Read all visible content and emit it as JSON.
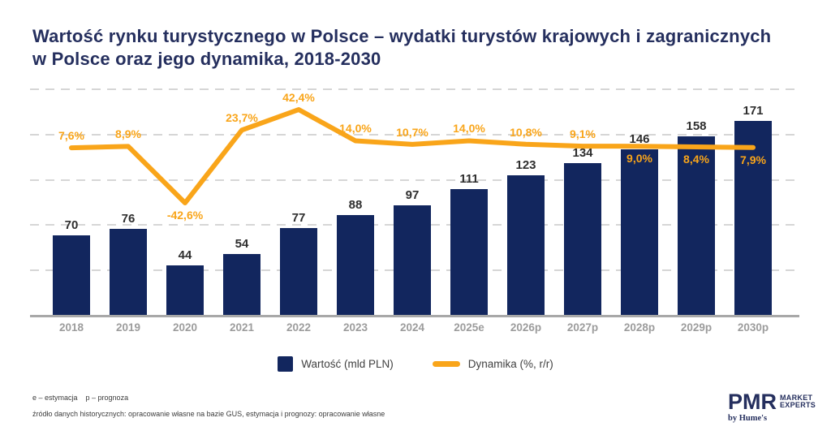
{
  "title": {
    "line1": "Wartość rynku turystycznego w Polsce – wydatki turystów krajowych i zagranicznych",
    "line2": "w Polsce oraz jego dynamika, 2018-2030"
  },
  "chart_data": {
    "type": "bar+line combo",
    "title": "Wartość rynku turystycznego w Polsce – wydatki turystów krajowych i zagranicznych w Polsce oraz jego dynamika, 2018-2030",
    "categories": [
      "2018",
      "2019",
      "2020",
      "2021",
      "2022",
      "2023",
      "2024",
      "2025e",
      "2026p",
      "2027p",
      "2028p",
      "2029p",
      "2030p"
    ],
    "series": [
      {
        "name": "Wartość (mld PLN)",
        "type": "bar",
        "color": "#12265e",
        "values": [
          70,
          76,
          44,
          54,
          77,
          88,
          97,
          111,
          123,
          134,
          146,
          158,
          171
        ]
      },
      {
        "name": "Dynamika (%, r/r)",
        "type": "line",
        "color": "#f9a51a",
        "values": [
          7.6,
          8.9,
          -42.6,
          23.7,
          42.4,
          14.0,
          10.7,
          14.0,
          10.8,
          9.1,
          9.0,
          8.4,
          7.9
        ],
        "labels": [
          "7,6%",
          "8,9%",
          "-42,6%",
          "23,7%",
          "42,4%",
          "14,0%",
          "10,7%",
          "14,0%",
          "10,8%",
          "9,1%",
          "9,0%",
          "8,4%",
          "7,9%"
        ],
        "label_positions": [
          "above",
          "above",
          "below",
          "above",
          "above",
          "above",
          "above",
          "above",
          "above",
          "above",
          "below",
          "below",
          "below"
        ]
      }
    ],
    "ylim": [
      0,
      200
    ],
    "gridline_step": 40,
    "grid": "dashed horizontal, unlabeled axis",
    "legend_position": "bottom center",
    "xlabel": "",
    "ylabel": ""
  },
  "notes": {
    "definitions": "e – estymacja    p – prognoza",
    "source": "źródło danych historycznych: opracowanie własne na bazie GUS, estymacja i prognozy: opracowanie własne"
  },
  "logo": {
    "name": "PMR",
    "tag1": "MARKET",
    "tag2": "EXPERTS",
    "byline": "by Hume's"
  }
}
